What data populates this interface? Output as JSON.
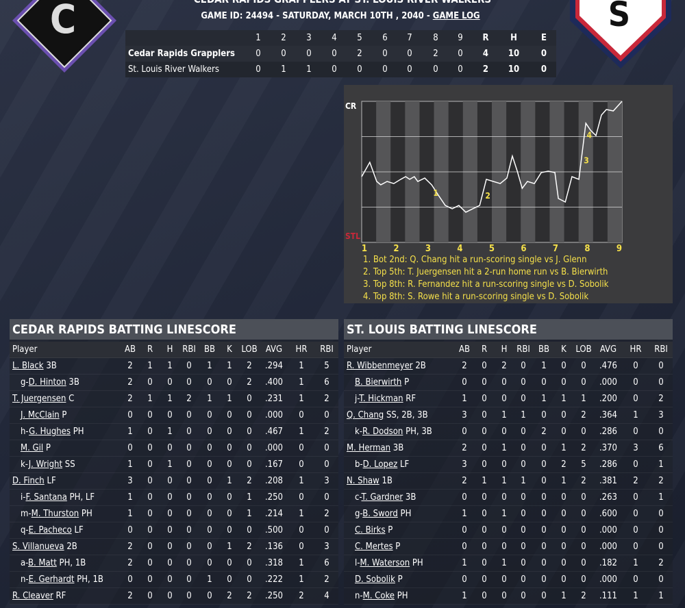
{
  "header": {
    "title": "CEDAR RAPIDS GRAPPLERS AT ST. LOUIS RIVER WALKERS",
    "game_line": "GAME ID: 24494 - SATURDAY, MARCH 10TH , 2040 - ",
    "game_log": "GAME LOG",
    "away_logo": "C",
    "home_logo": "S"
  },
  "linescore": {
    "headers": [
      "1",
      "2",
      "3",
      "4",
      "5",
      "6",
      "7",
      "8",
      "9",
      "R",
      "H",
      "E"
    ],
    "rows": [
      {
        "team": "Cedar Rapids Grapplers",
        "values": [
          0,
          0,
          0,
          0,
          2,
          0,
          0,
          2,
          0,
          4,
          10,
          0
        ]
      },
      {
        "team": "St. Louis River Walkers",
        "values": [
          0,
          1,
          1,
          0,
          0,
          0,
          0,
          0,
          0,
          2,
          10,
          0
        ]
      }
    ]
  },
  "chart_data": {
    "type": "line",
    "top_label": "CR",
    "bottom_label": "STL",
    "innings": [
      "1",
      "2",
      "3",
      "4",
      "5",
      "6",
      "7",
      "8",
      "9"
    ],
    "xlim": [
      0,
      9
    ],
    "ylim": [
      0,
      100
    ],
    "ygrid": [
      25,
      50,
      75
    ],
    "series": [
      {
        "color": "#ffffff",
        "x": [
          0,
          0.28,
          0.52,
          0.66,
          0.88,
          1.11,
          1.35,
          1.52,
          1.66,
          1.82,
          1.94,
          2.18,
          2.42,
          2.65,
          2.89,
          3.13,
          3.36,
          3.6,
          3.84,
          4.08,
          4.31,
          4.55,
          4.79,
          5.02,
          5.21,
          5.38,
          5.55,
          5.73,
          5.97,
          6.21,
          6.45,
          6.68,
          6.8,
          7.04,
          7.27,
          7.51,
          7.75,
          7.91,
          8.1,
          8.29,
          8.46,
          8.7,
          9
        ],
        "values": [
          46.6,
          56.8,
          43.2,
          40.8,
          43.2,
          41.7,
          44.7,
          46.6,
          44.7,
          46.6,
          43.2,
          45.6,
          40.8,
          33.5,
          26.2,
          23.8,
          26.2,
          21.4,
          23.8,
          26.2,
          44.7,
          43.2,
          41.7,
          45.6,
          61.2,
          50.5,
          38.3,
          43.2,
          41.7,
          49.5,
          50.5,
          49.5,
          31.1,
          28.6,
          46.6,
          44.7,
          84.5,
          79.6,
          75.7,
          90.3,
          94.2,
          93.2,
          100
        ]
      }
    ],
    "markers": [
      {
        "label": "1",
        "x": 2.56,
        "y": 35
      },
      {
        "label": "2",
        "x": 4.36,
        "y": 33
      },
      {
        "label": "3",
        "x": 7.77,
        "y": 58
      },
      {
        "label": "4",
        "x": 7.87,
        "y": 76
      }
    ],
    "notes": [
      "1. Bot 2nd: Q. Chang hit a run-scoring single vs J. Glenn",
      "2. Top 5th: T. Juergensen hit a 2-run home run vs B. Bierwirth",
      "3. Top 8th: R. Fernandez hit a run-scoring single vs D. Sobolik",
      "4. Top 8th: S. Rowe hit a run-scoring single vs D. Sobolik"
    ]
  },
  "batting": [
    {
      "title": "CEDAR RAPIDS BATTING LINESCORE",
      "headers": [
        "Player",
        "AB",
        "R",
        "H",
        "RBI",
        "BB",
        "K",
        "LOB",
        "AVG",
        "HR",
        "RBI"
      ],
      "rows": [
        {
          "name": "L. Black",
          "pos": "3B",
          "indent": false,
          "stats": [
            2,
            1,
            1,
            0,
            1,
            1,
            2,
            ".294",
            1,
            5
          ]
        },
        {
          "sub": "g-",
          "name": "D. Hinton",
          "pos": "3B",
          "indent": true,
          "stats": [
            2,
            0,
            0,
            0,
            0,
            0,
            2,
            ".400",
            1,
            6
          ]
        },
        {
          "name": "T. Juergensen",
          "pos": "C",
          "indent": false,
          "stats": [
            2,
            1,
            1,
            2,
            1,
            1,
            0,
            ".231",
            1,
            2
          ]
        },
        {
          "name": "J. McClain",
          "pos": "P",
          "indent": true,
          "stats": [
            0,
            0,
            0,
            0,
            0,
            0,
            0,
            ".000",
            0,
            0
          ]
        },
        {
          "sub": "h-",
          "name": "G. Hughes",
          "pos": "PH",
          "indent": true,
          "stats": [
            1,
            0,
            1,
            0,
            0,
            0,
            0,
            ".467",
            1,
            2
          ]
        },
        {
          "name": "M. Gil",
          "pos": "P",
          "indent": true,
          "stats": [
            0,
            0,
            0,
            0,
            0,
            0,
            0,
            ".000",
            0,
            0
          ]
        },
        {
          "sub": "k-",
          "name": "J. Wright",
          "pos": "SS",
          "indent": true,
          "stats": [
            1,
            0,
            1,
            0,
            0,
            0,
            0,
            ".167",
            0,
            0
          ]
        },
        {
          "name": "D. Finch",
          "pos": "LF",
          "indent": false,
          "stats": [
            3,
            0,
            0,
            0,
            0,
            1,
            2,
            ".208",
            1,
            3
          ]
        },
        {
          "sub": "i-",
          "name": "F. Santana",
          "pos": "PH, LF",
          "indent": true,
          "stats": [
            1,
            0,
            0,
            0,
            0,
            0,
            1,
            ".250",
            0,
            0
          ]
        },
        {
          "sub": "m-",
          "name": "M. Thurston",
          "pos": "PH",
          "indent": true,
          "stats": [
            1,
            0,
            0,
            0,
            0,
            0,
            1,
            ".214",
            1,
            2
          ]
        },
        {
          "sub": "q-",
          "name": "E. Pacheco",
          "pos": "LF",
          "indent": true,
          "stats": [
            0,
            0,
            0,
            0,
            0,
            0,
            0,
            ".500",
            0,
            0
          ]
        },
        {
          "name": "S. Villanueva",
          "pos": "2B",
          "indent": false,
          "stats": [
            2,
            0,
            0,
            0,
            0,
            1,
            2,
            ".136",
            0,
            3
          ]
        },
        {
          "sub": "a-",
          "name": "B. Matt",
          "pos": "PH, 1B",
          "indent": true,
          "stats": [
            2,
            0,
            0,
            0,
            0,
            0,
            0,
            ".318",
            1,
            6
          ]
        },
        {
          "sub": "n-",
          "name": "E. Gerhardt",
          "pos": "PH, 1B",
          "indent": true,
          "stats": [
            0,
            0,
            0,
            0,
            1,
            0,
            0,
            ".222",
            1,
            2
          ]
        },
        {
          "name": "R. Cleaver",
          "pos": "RF",
          "indent": false,
          "stats": [
            2,
            0,
            0,
            0,
            0,
            2,
            2,
            ".250",
            2,
            4
          ]
        }
      ]
    },
    {
      "title": "ST. LOUIS BATTING LINESCORE",
      "headers": [
        "Player",
        "AB",
        "R",
        "H",
        "RBI",
        "BB",
        "K",
        "LOB",
        "AVG",
        "HR",
        "RBI"
      ],
      "rows": [
        {
          "name": "R. Wibbenmeyer",
          "pos": "2B",
          "indent": false,
          "stats": [
            2,
            0,
            2,
            0,
            1,
            0,
            0,
            ".476",
            0,
            0
          ]
        },
        {
          "name": "B. Bierwirth",
          "pos": "P",
          "indent": true,
          "stats": [
            0,
            0,
            0,
            0,
            0,
            0,
            0,
            ".000",
            0,
            0
          ]
        },
        {
          "sub": "j-",
          "name": "T. Hickman",
          "pos": "RF",
          "indent": true,
          "stats": [
            1,
            0,
            0,
            0,
            1,
            1,
            1,
            ".200",
            0,
            2
          ]
        },
        {
          "name": "Q. Chang",
          "pos": "SS, 2B, 3B",
          "indent": false,
          "stats": [
            3,
            0,
            1,
            1,
            0,
            0,
            2,
            ".364",
            1,
            3
          ]
        },
        {
          "sub": "k-",
          "name": "R. Dodson",
          "pos": "PH, 3B",
          "indent": true,
          "stats": [
            0,
            0,
            0,
            0,
            2,
            0,
            0,
            ".286",
            0,
            0
          ]
        },
        {
          "name": "M. Herman",
          "pos": "3B",
          "indent": false,
          "stats": [
            2,
            0,
            1,
            0,
            0,
            1,
            2,
            ".370",
            3,
            6
          ]
        },
        {
          "sub": "b-",
          "name": "D. Lopez",
          "pos": "LF",
          "indent": true,
          "stats": [
            3,
            0,
            0,
            0,
            0,
            2,
            5,
            ".286",
            0,
            1
          ]
        },
        {
          "name": "N. Shaw",
          "pos": "1B",
          "indent": false,
          "stats": [
            2,
            1,
            1,
            1,
            0,
            1,
            2,
            ".381",
            2,
            2
          ]
        },
        {
          "sub": "c-",
          "name": "T. Gardner",
          "pos": "3B",
          "indent": true,
          "stats": [
            0,
            0,
            0,
            0,
            0,
            0,
            0,
            ".263",
            0,
            1
          ]
        },
        {
          "sub": "g-",
          "name": "B. Sword",
          "pos": "PH",
          "indent": true,
          "stats": [
            1,
            0,
            1,
            0,
            0,
            0,
            0,
            ".600",
            0,
            0
          ]
        },
        {
          "name": "C. Birks",
          "pos": "P",
          "indent": true,
          "stats": [
            0,
            0,
            0,
            0,
            0,
            0,
            0,
            ".000",
            0,
            0
          ]
        },
        {
          "name": "C. Mertes",
          "pos": "P",
          "indent": true,
          "stats": [
            0,
            0,
            0,
            0,
            0,
            0,
            0,
            ".000",
            0,
            0
          ]
        },
        {
          "sub": "l-",
          "name": "M. Waterson",
          "pos": "PH",
          "indent": true,
          "stats": [
            1,
            0,
            1,
            0,
            0,
            0,
            0,
            ".182",
            1,
            2
          ]
        },
        {
          "name": "D. Sobolik",
          "pos": "P",
          "indent": true,
          "stats": [
            0,
            0,
            0,
            0,
            0,
            0,
            0,
            ".000",
            0,
            0
          ]
        },
        {
          "sub": "n-",
          "name": "M. Coke",
          "pos": "PH",
          "indent": true,
          "stats": [
            1,
            0,
            0,
            0,
            0,
            1,
            2,
            ".111",
            1,
            1
          ]
        }
      ]
    }
  ]
}
